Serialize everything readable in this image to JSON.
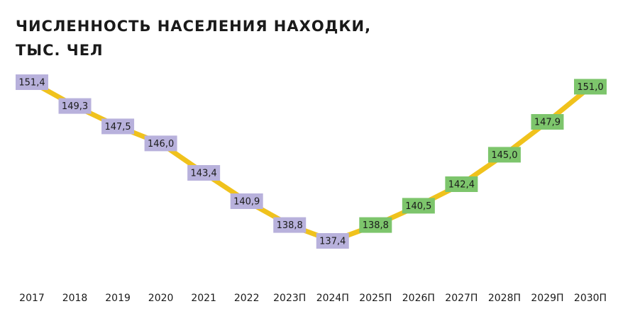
{
  "chart_data": {
    "type": "line",
    "title": [
      "ЧИСЛЕННОСТЬ НАСЕЛЕНИЯ НАХОДКИ,",
      "ТЫС. ЧЕЛ"
    ],
    "categories": [
      "2017",
      "2018",
      "2019",
      "2020",
      "2021",
      "2022",
      "2023П",
      "2024П",
      "2025П",
      "2026П",
      "2027П",
      "2028П",
      "2029П",
      "2030П"
    ],
    "values": [
      151.4,
      149.3,
      147.5,
      146.0,
      143.4,
      140.9,
      138.8,
      137.4,
      138.8,
      140.5,
      142.4,
      145.0,
      147.9,
      151.0
    ],
    "value_labels": [
      "151,4",
      "149,3",
      "147,5",
      "146,0",
      "143,4",
      "140,9",
      "138,8",
      "137,4",
      "138,8",
      "140,5",
      "142,4",
      "145,0",
      "147,9",
      "151,0"
    ],
    "color": "#f0c21c",
    "label_colors": [
      "#b8b1dc",
      "#b8b1dc",
      "#b8b1dc",
      "#b8b1dc",
      "#b8b1dc",
      "#b8b1dc",
      "#b8b1dc",
      "#b8b1dc",
      "#7dc56c",
      "#7dc56c",
      "#7dc56c",
      "#7dc56c",
      "#7dc56c",
      "#7dc56c"
    ]
  }
}
